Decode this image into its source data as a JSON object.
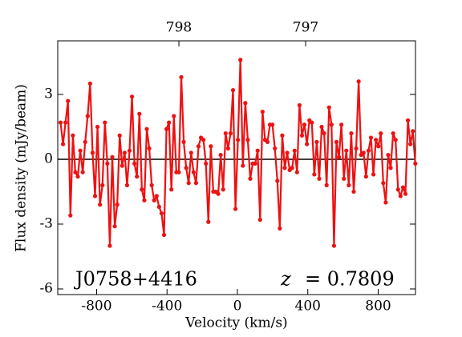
{
  "chart_data": {
    "type": "line",
    "xlabel": "Velocity (km/s)",
    "ylabel": "Flux density (mJy/beam)",
    "source_label": "J0758+4416",
    "redshift_symbol": "z",
    "redshift_label": "= 0.7809",
    "xlim": [
      -1021,
      1012
    ],
    "ylim": [
      -6.26,
      5.48
    ],
    "xticks": [
      -800,
      -400,
      0,
      400,
      800
    ],
    "yticks": [
      3,
      0,
      -3,
      -6
    ],
    "x2lim": [
      798.956,
      796.133
    ],
    "x2ticks": [
      798,
      797
    ],
    "hline": 0,
    "hline_color": "#000000",
    "x": [
      -1005,
      -991,
      -977,
      -963,
      -949,
      -935,
      -921,
      -907,
      -893,
      -879,
      -865,
      -851,
      -837,
      -823,
      -809,
      -795,
      -781,
      -767,
      -753,
      -739,
      -725,
      -711,
      -697,
      -683,
      -669,
      -655,
      -641,
      -627,
      -613,
      -599,
      -585,
      -571,
      -557,
      -543,
      -529,
      -515,
      -501,
      -487,
      -473,
      -459,
      -445,
      -431,
      -417,
      -403,
      -389,
      -375,
      -361,
      -347,
      -333,
      -319,
      -305,
      -291,
      -277,
      -263,
      -249,
      -235,
      -221,
      -207,
      -193,
      -179,
      -165,
      -151,
      -137,
      -123,
      -109,
      -95,
      -81,
      -67,
      -53,
      -39,
      -25,
      -11,
      3,
      17,
      31,
      45,
      59,
      73,
      87,
      101,
      115,
      129,
      143,
      157,
      171,
      185,
      199,
      213,
      227,
      241,
      255,
      269,
      283,
      297,
      311,
      325,
      339,
      353,
      367,
      381,
      395,
      409,
      423,
      437,
      451,
      465,
      479,
      493,
      507,
      521,
      535,
      549,
      563,
      577,
      591,
      605,
      619,
      633,
      647,
      661,
      675,
      689,
      703,
      717,
      731,
      745,
      759,
      773,
      787,
      801,
      815,
      829,
      843,
      857,
      871,
      885,
      899,
      913,
      927,
      941,
      955,
      969,
      983,
      997,
      1011
    ],
    "series": [
      {
        "color": "#ee1111",
        "values": [
          1.7,
          0.7,
          1.7,
          2.7,
          -2.6,
          1.1,
          -0.6,
          -0.8,
          0.4,
          -0.6,
          0.8,
          2.0,
          3.5,
          0.3,
          -1.7,
          1.5,
          -2.1,
          -1.2,
          1.7,
          -0.2,
          -4.0,
          0.1,
          -3.1,
          -2.1,
          1.1,
          -0.3,
          0.3,
          -1.2,
          0.4,
          2.9,
          -0.2,
          -0.8,
          2.1,
          -1.4,
          -1.9,
          1.4,
          0.5,
          -1.2,
          -1.9,
          -1.7,
          -2.2,
          -2.5,
          -3.5,
          1.4,
          1.7,
          -1.4,
          2.0,
          -0.6,
          -0.6,
          3.8,
          0.8,
          -0.4,
          -1.1,
          0.3,
          -0.6,
          -1.1,
          0.6,
          1.0,
          0.9,
          -0.2,
          -2.9,
          0.6,
          -1.5,
          -1.5,
          -1.6,
          0.2,
          -1.4,
          1.2,
          0.5,
          1.2,
          3.2,
          -2.3,
          0.9,
          4.6,
          -0.3,
          2.6,
          0.9,
          -0.9,
          -0.2,
          -0.2,
          0.4,
          -2.8,
          2.2,
          0.9,
          0.8,
          1.6,
          1.6,
          0.5,
          -1.0,
          -3.2,
          1.1,
          -0.4,
          0.3,
          -0.5,
          -0.4,
          0.4,
          -0.6,
          2.5,
          1.1,
          1.6,
          0.7,
          1.8,
          1.7,
          -0.7,
          0.8,
          -0.9,
          1.5,
          1.2,
          -1.2,
          2.4,
          1.6,
          -4.0,
          0.8,
          0.1,
          1.6,
          -0.9,
          0.4,
          -1.2,
          1.2,
          -1.5,
          0.5,
          3.6,
          0.2,
          0.3,
          -0.8,
          0.4,
          1.0,
          -0.7,
          0.9,
          0.6,
          1.2,
          -1.1,
          -2.0,
          0.2,
          -0.4,
          1.2,
          0.9,
          -1.4,
          -1.7,
          -1.3,
          -1.6,
          1.8,
          0.7,
          1.3,
          -0.2
        ]
      }
    ]
  }
}
